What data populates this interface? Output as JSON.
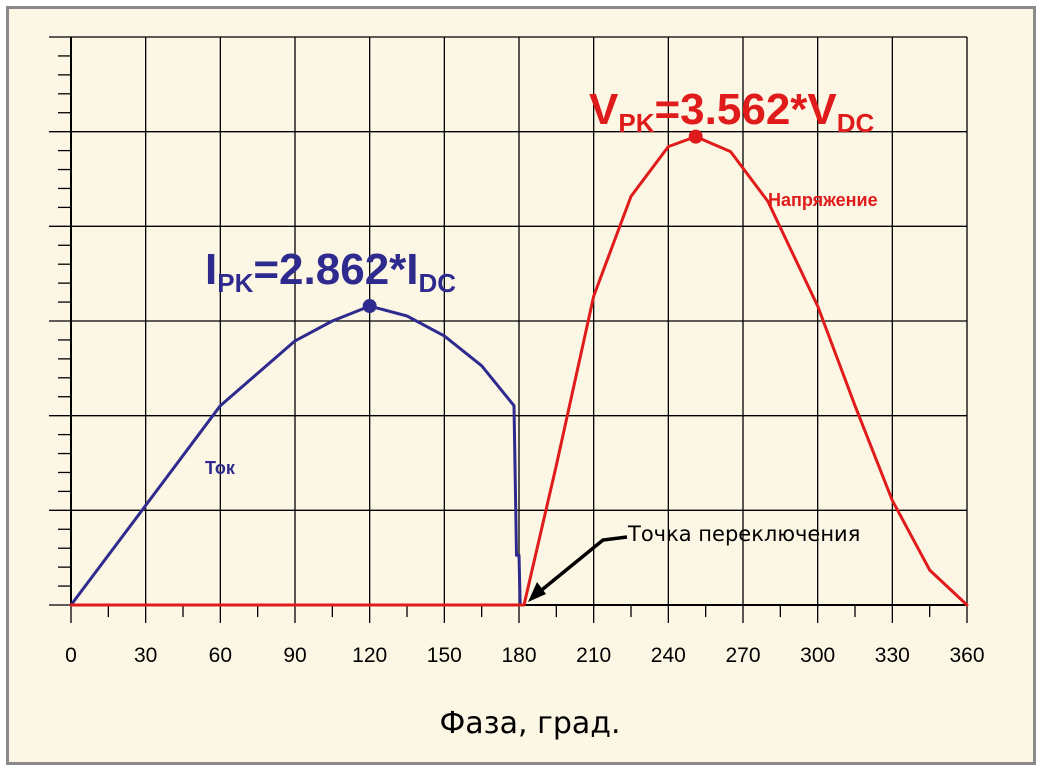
{
  "chart_data": {
    "type": "line",
    "xlabel": "Фаза, град.",
    "ylabel": "",
    "xlim": [
      0,
      360
    ],
    "ylim": [
      0,
      5.7
    ],
    "grid": true,
    "x_ticks": [
      0,
      30,
      60,
      90,
      120,
      150,
      180,
      210,
      240,
      270,
      300,
      330,
      360
    ],
    "series": [
      {
        "name": "Ток",
        "color": "#2e2a8e",
        "x": [
          0,
          30,
          60,
          90,
          105,
          120,
          135,
          150,
          165,
          178,
          179,
          180,
          180.5
        ],
        "y": [
          0,
          1.0,
          2.0,
          2.65,
          2.85,
          3.0,
          2.9,
          2.7,
          2.4,
          2.0,
          0.5,
          0.5,
          0
        ]
      },
      {
        "name": "Напряжение",
        "color": "#e01b1b",
        "x": [
          0,
          181,
          182,
          195,
          210,
          225,
          240,
          251,
          265,
          280,
          300,
          315,
          330,
          345,
          360
        ],
        "y": [
          0,
          0,
          0,
          1.4,
          3.1,
          4.1,
          4.6,
          4.7,
          4.55,
          4.05,
          3.0,
          2.0,
          1.05,
          0.35,
          0
        ]
      }
    ],
    "peaks": [
      {
        "series": "Ток",
        "x": 120,
        "y": 3.0,
        "label_main": "I",
        "label_sub1": "PK",
        "label_mid": "=2.862*I",
        "label_sub2": "DC"
      },
      {
        "series": "Напряжение",
        "x": 251,
        "y": 4.7,
        "label_main": "V",
        "label_sub1": "PK",
        "label_mid": "=3.562*V",
        "label_sub2": "DC"
      }
    ],
    "annotations": [
      {
        "text": "Точка переключения",
        "x": 181,
        "y": 0
      }
    ]
  }
}
